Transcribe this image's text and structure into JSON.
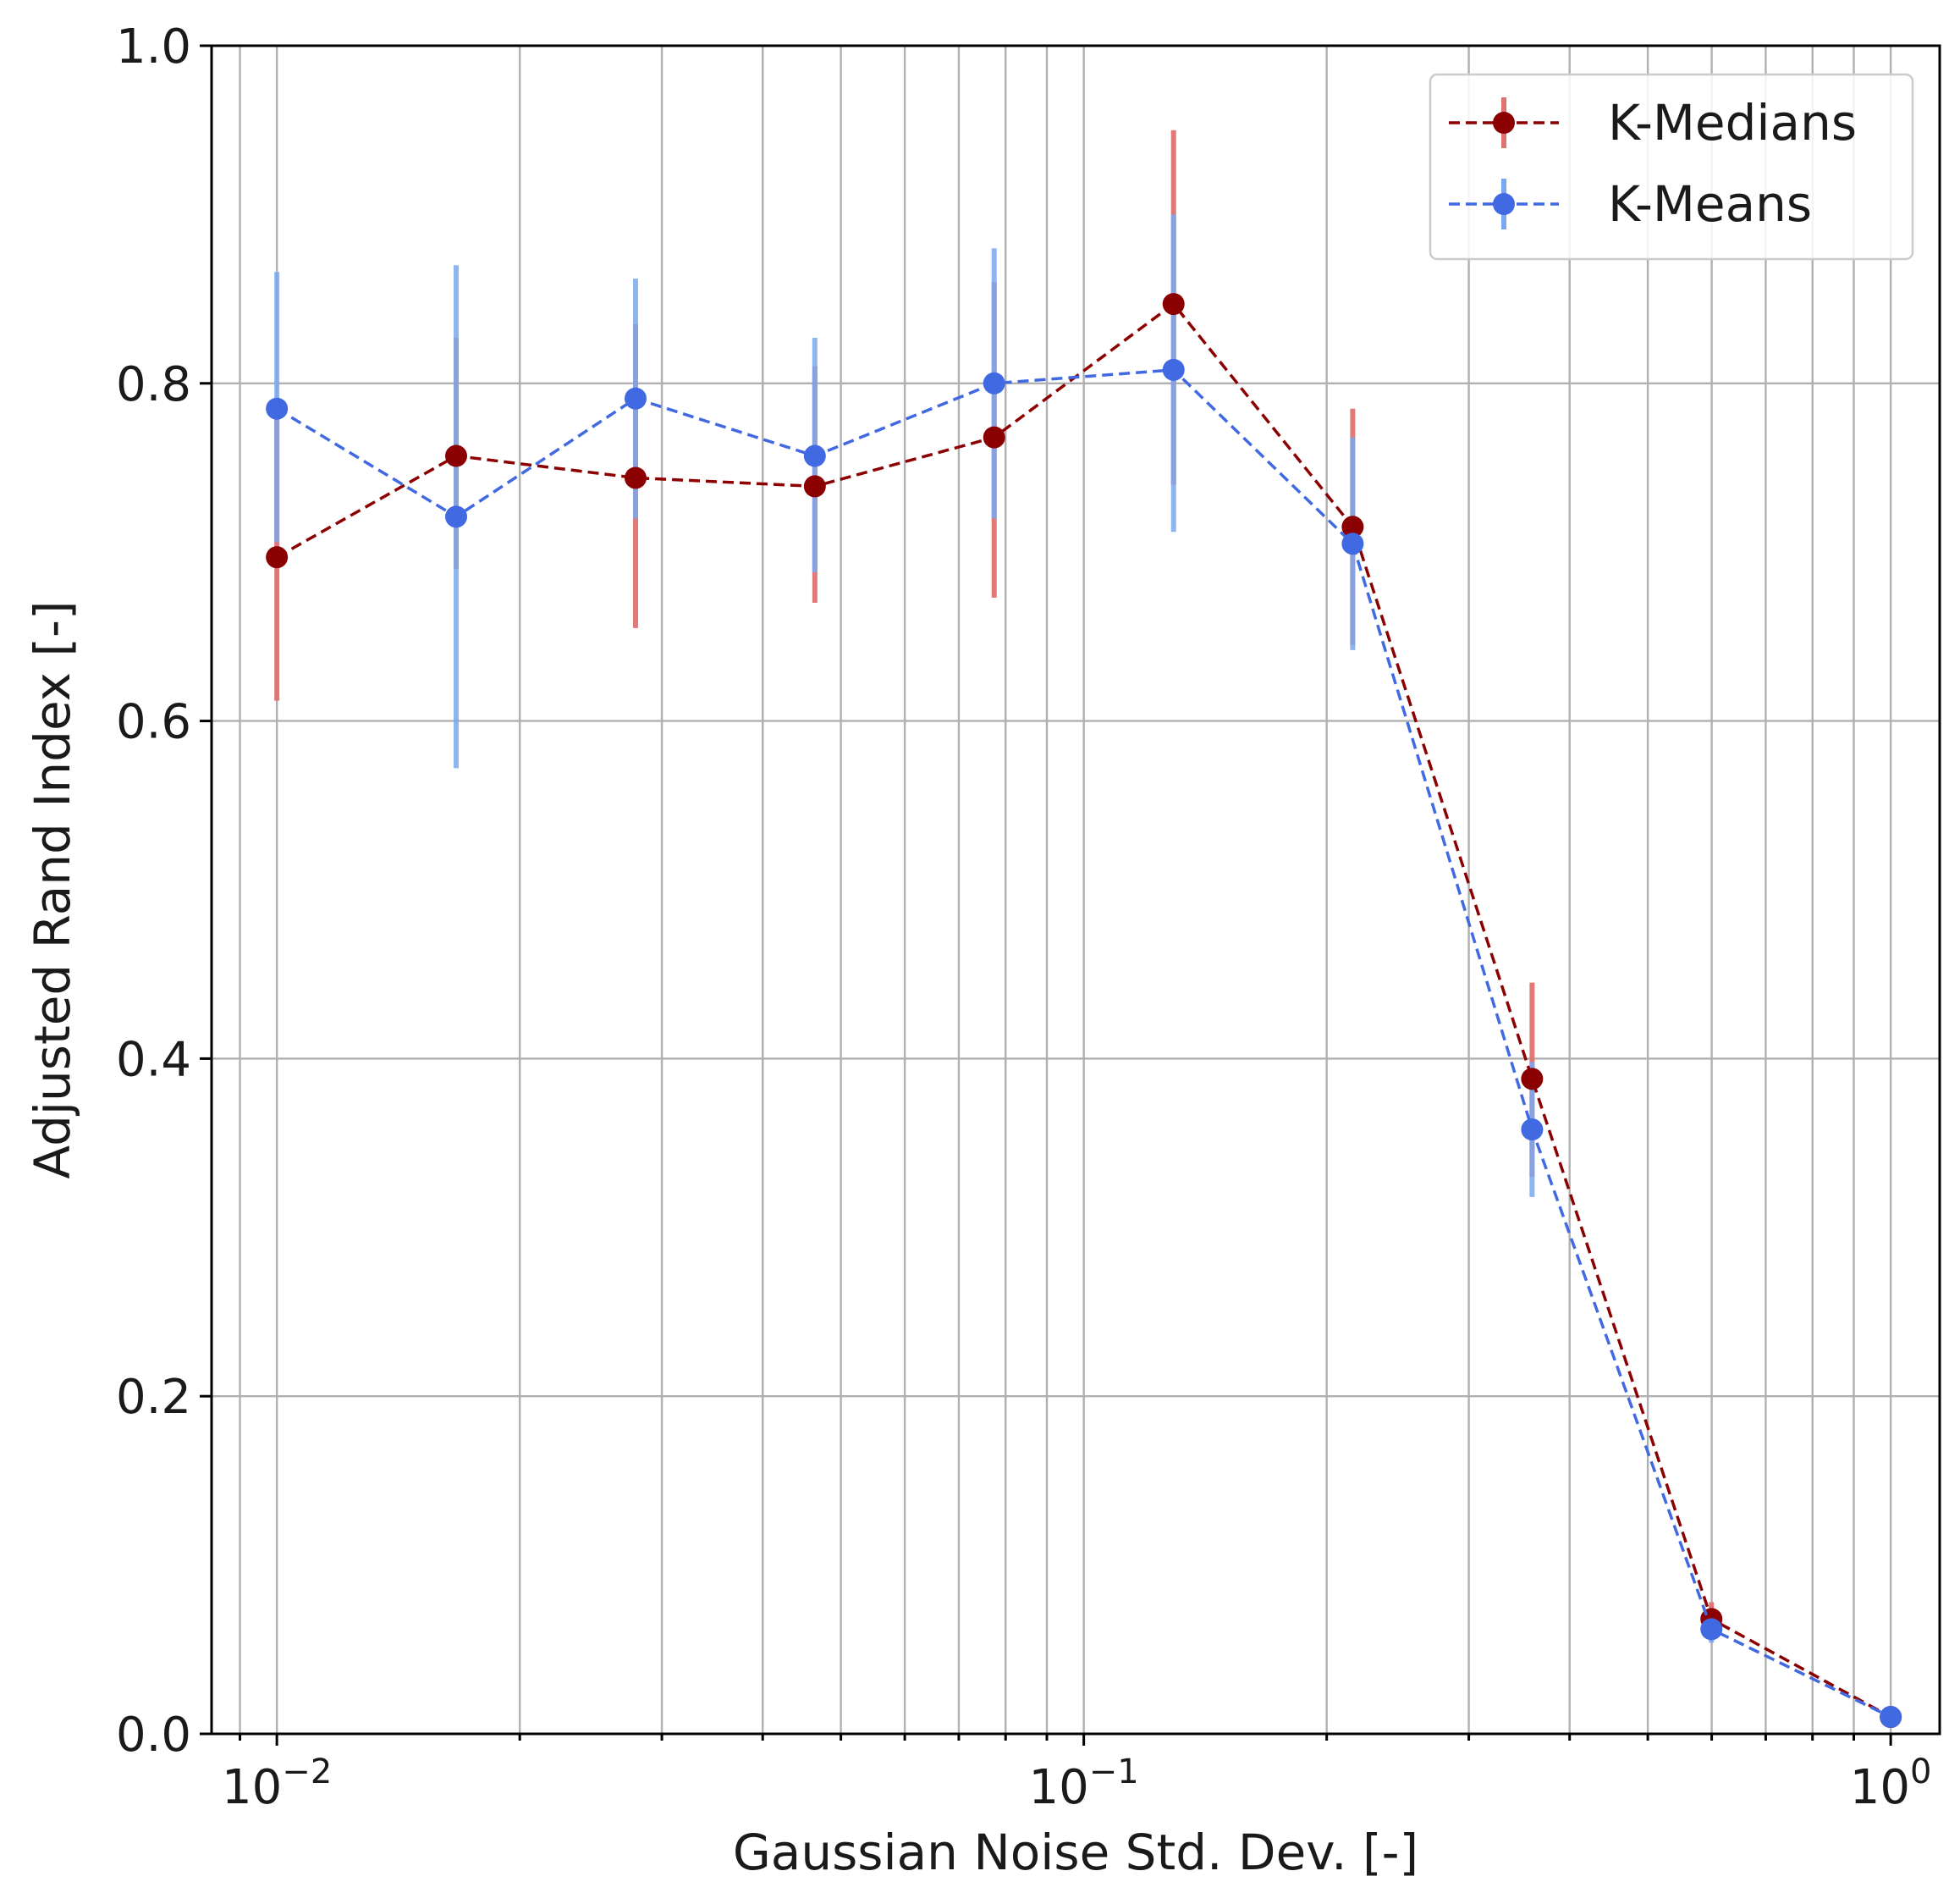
{
  "chart_data": {
    "type": "line",
    "title": "",
    "xlabel": "Gaussian Noise Std. Dev. [-]",
    "ylabel": "Adjusted Rand Index [-]",
    "xscale": "log",
    "xlim": [
      0.0083,
      1.15
    ],
    "ylim": [
      0.0,
      1.0
    ],
    "grid": true,
    "grid_minor": true,
    "legend_position": "top-right",
    "x_ticks": [
      {
        "value": 0.01,
        "base": "10",
        "exp": "−2"
      },
      {
        "value": 0.1,
        "base": "10",
        "exp": "−1"
      },
      {
        "value": 1.0,
        "base": "10",
        "exp": "0"
      }
    ],
    "y_ticks": [
      {
        "value": 0.0,
        "label": "0.0"
      },
      {
        "value": 0.2,
        "label": "0.2"
      },
      {
        "value": 0.4,
        "label": "0.4"
      },
      {
        "value": 0.6,
        "label": "0.6"
      },
      {
        "value": 0.8,
        "label": "0.8"
      },
      {
        "value": 1.0,
        "label": "1.0"
      }
    ],
    "x": [
      0.01,
      0.01668,
      0.02783,
      0.04642,
      0.07743,
      0.1292,
      0.2154,
      0.3594,
      0.5995,
      1.0
    ],
    "series": [
      {
        "name": "K-Medians",
        "color": "#8b0000",
        "errcolor": "#e07272",
        "values": [
          0.697,
          0.757,
          0.744,
          0.739,
          0.768,
          0.847,
          0.715,
          0.388,
          0.068,
          0.01
        ],
        "err_low": [
          0.612,
          0.69,
          0.655,
          0.67,
          0.673,
          0.74,
          0.645,
          0.33,
          0.058,
          0.008
        ],
        "err_high": [
          0.782,
          0.827,
          0.835,
          0.81,
          0.86,
          0.95,
          0.785,
          0.445,
          0.078,
          0.012
        ]
      },
      {
        "name": "K-Means",
        "color": "#4169e1",
        "errcolor": "#79a8f0",
        "values": [
          0.785,
          0.721,
          0.791,
          0.757,
          0.8,
          0.808,
          0.705,
          0.358,
          0.062,
          0.01
        ],
        "err_low": [
          0.706,
          0.572,
          0.72,
          0.688,
          0.72,
          0.712,
          0.642,
          0.318,
          0.054,
          0.008
        ],
        "err_high": [
          0.866,
          0.87,
          0.862,
          0.827,
          0.88,
          0.9,
          0.768,
          0.398,
          0.07,
          0.012
        ]
      }
    ]
  }
}
